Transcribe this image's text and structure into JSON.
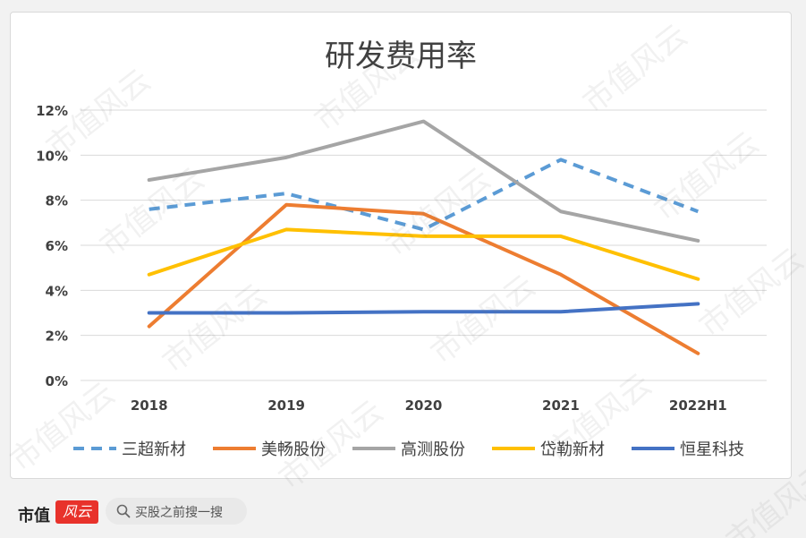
{
  "chart_data": {
    "type": "line",
    "title": "研发费用率",
    "categories": [
      "2018",
      "2019",
      "2020",
      "2021",
      "2022H1"
    ],
    "ylim": [
      0,
      12
    ],
    "yticks": [
      "0%",
      "2%",
      "4%",
      "6%",
      "8%",
      "10%",
      "12%"
    ],
    "ytick_values": [
      0,
      2,
      4,
      6,
      8,
      10,
      12
    ],
    "grid": true,
    "legend_position": "bottom",
    "series": [
      {
        "name": "三超新材",
        "values": [
          7.6,
          8.3,
          6.7,
          9.8,
          7.5
        ],
        "color": "#5b9bd5",
        "dashed": true
      },
      {
        "name": "美畅股份",
        "values": [
          2.4,
          7.8,
          7.4,
          4.7,
          1.2
        ],
        "color": "#ed7d31",
        "dashed": false
      },
      {
        "name": "高测股份",
        "values": [
          8.9,
          9.9,
          11.5,
          7.5,
          6.2
        ],
        "color": "#a5a5a5",
        "dashed": false
      },
      {
        "name": "岱勒新材",
        "values": [
          4.7,
          6.7,
          6.4,
          6.4,
          4.5
        ],
        "color": "#ffc000",
        "dashed": false
      },
      {
        "name": "恒星科技",
        "values": [
          3.0,
          3.0,
          3.05,
          3.05,
          3.4
        ],
        "color": "#4472c4",
        "dashed": false
      }
    ]
  },
  "watermark": "市值风云",
  "footer": {
    "brand": "市值",
    "brand_logo": "风云",
    "search_placeholder": "买股之前搜一搜",
    "search_icon": "search-icon"
  }
}
